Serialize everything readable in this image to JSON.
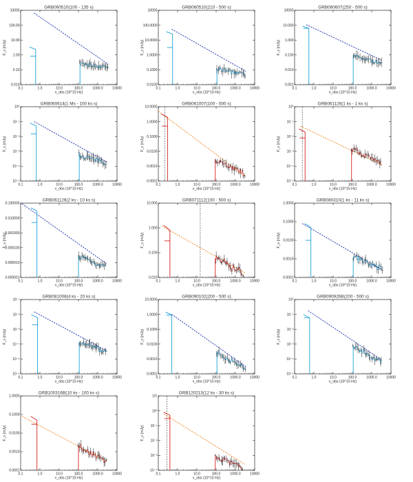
{
  "figure": {
    "xlabel": "ν_obs (10^15 Hz)",
    "ylabel": "F_ν (mJy)",
    "x_ticks": [
      "0.1",
      "1.0",
      "10.0",
      "100.0",
      "1000.0",
      "10000"
    ],
    "colors": {
      "blue_fit": "#1a2fb0",
      "orange_fit": "#f08a24",
      "cyan": "#1aa0d8",
      "red": "#d42020",
      "data": "#000000"
    }
  },
  "chart_data": [
    {
      "type": "line",
      "title": "GRB060510(100 - 135 s)",
      "fit_color": "blue",
      "y_ticks": [
        "0.010",
        "0.10",
        "1.00",
        "10.00",
        "100.00",
        "10000"
      ],
      "ylim_exp": [
        -2,
        4
      ],
      "fit": {
        "x": [
          0.5,
          3500
        ],
        "y": [
          6000,
          0.45
        ]
      },
      "opt_x": 0.6,
      "opt_y": [
        7.0,
        2.0
      ],
      "xr_range": [
        120,
        3400
      ],
      "xr_level": [
        0.25,
        0.5
      ],
      "xr_band": [
        120,
        180
      ],
      "vline": null
    },
    {
      "type": "line",
      "title": "GRB060510(210 - 500 s)",
      "fit_color": "blue",
      "y_ticks": [
        "0.0100",
        "0.1000",
        "1.0000",
        "10.0000",
        "100.0000",
        "10000"
      ],
      "ylim_exp": [
        -2,
        4
      ],
      "fit": {
        "x": [
          0.5,
          3500
        ],
        "y": [
          300,
          0.12
        ]
      },
      "opt_x": 0.55,
      "opt_y": [
        120,
        10
      ],
      "xr_range": [
        110,
        3200
      ],
      "xr_level": [
        0.06,
        0.2
      ],
      "xr_band": [
        110,
        160
      ],
      "vline": null
    },
    {
      "type": "line",
      "title": "GRB060607(250 - 500 s)",
      "fit_color": "blue",
      "y_ticks": [
        "0.001",
        "0.010",
        "0.100",
        "1.000",
        "10.000",
        "10000"
      ],
      "ylim_exp": [
        -3,
        4
      ],
      "fit": {
        "x": [
          0.4,
          3300
        ],
        "y": [
          450,
          0.2
        ]
      },
      "opt_x": 0.55,
      "opt_y": [
        200,
        200
      ],
      "xr_range": [
        110,
        3300
      ],
      "xr_level": [
        0.1,
        0.5
      ],
      "xr_band": [
        110,
        150
      ],
      "vline": null
    },
    {
      "type": "line",
      "title": "GRB060614(1 Ms - 100 ks s)",
      "fit_color": "blue",
      "y_ticks": [
        "10⁻⁵",
        "10⁻⁴",
        "10⁻³",
        "10⁻²",
        "10⁻¹",
        "10⁰"
      ],
      "ylim_exp": [
        -5,
        0
      ],
      "fit": {
        "x": [
          0.5,
          3300
        ],
        "y": [
          0.1,
          0.00018
        ]
      },
      "opt_x": 0.65,
      "opt_y": [
        0.05,
        0.015
      ],
      "xr_range": [
        110,
        2600
      ],
      "xr_level": [
        0.00015,
        0.0006
      ],
      "xr_band": [
        110,
        140
      ],
      "vline": null
    },
    {
      "type": "line",
      "title": "GRB061007(100 - 500 s)",
      "fit_color": "orange",
      "y_ticks": [
        "0.0001",
        "0.0010",
        "0.0100",
        "0.1000",
        "1.0000",
        "10.0000"
      ],
      "ylim_exp": [
        -4,
        1
      ],
      "fit": {
        "x": [
          0.1,
          3500
        ],
        "y": [
          5,
          0.0002
        ]
      },
      "opt_x": 0.3,
      "opt_y": [
        2.0,
        0.5
      ],
      "xr_range": [
        90,
        3000
      ],
      "xr_level": [
        0.0003,
        0.003
      ],
      "xr_band": [
        90,
        130
      ],
      "vline": 0.22
    },
    {
      "type": "line",
      "title": "GRB061126(1 ks - 1 ks s)",
      "fit_color": "orange",
      "y_ticks": [
        "10⁻⁵",
        "10⁻⁴",
        "10⁻³",
        "10⁻²",
        "10⁻¹",
        "10⁰"
      ],
      "ylim_exp": [
        -5,
        0
      ],
      "fit": {
        "x": [
          0.2,
          3500
        ],
        "y": [
          0.05,
          0.00012
        ]
      },
      "opt_x": 0.35,
      "opt_y": [
        0.02,
        0.008
      ],
      "xr_range": [
        90,
        3000
      ],
      "xr_level": [
        0.00015,
        0.0015
      ],
      "xr_band": [
        90,
        120
      ],
      "vline": 0.25
    },
    {
      "type": "line",
      "title": "GRB061126(2 ks - 10 ks s)",
      "fit_color": "blue",
      "y_ticks": [
        "0.000001",
        "0.000010",
        "0.000100",
        "0.001000",
        "0.010000",
        "0.100000"
      ],
      "ylim_exp": [
        -6,
        -1
      ],
      "fit": {
        "x": [
          0.12,
          3000
        ],
        "y": [
          0.09,
          8e-06
        ]
      },
      "opt_x": 0.7,
      "opt_y": [
        0.03,
        0.005
      ],
      "xr_range": [
        100,
        2500
      ],
      "xr_level": [
        5e-06,
        3e-05
      ],
      "xr_band": [
        100,
        130
      ],
      "vline": null
    },
    {
      "type": "line",
      "title": "GRB071112(100 - 500 s)",
      "fit_color": "orange",
      "y_ticks": [
        "0.010",
        "0.100",
        "1.000",
        "10.000"
      ],
      "ylim_exp": [
        -2,
        1
      ],
      "fit": {
        "x": [
          0.15,
          3200
        ],
        "y": [
          1.2,
          0.015
        ]
      },
      "opt_x": 0.4,
      "opt_y": [
        0.8,
        0.3
      ],
      "xr_range": [
        90,
        2500
      ],
      "xr_level": [
        0.015,
        0.06
      ],
      "xr_band": [
        90,
        120
      ],
      "vline": 15
    },
    {
      "type": "line",
      "title": "GRB080310(1 ks - 11 ks s)",
      "fit_color": "blue",
      "y_ticks": [
        "0.0001",
        "0.0010",
        "0.0100",
        "0.1000",
        "1.0000"
      ],
      "ylim_exp": [
        -4,
        0
      ],
      "fit": {
        "x": [
          0.25,
          3500
        ],
        "y": [
          0.08,
          0.00025
        ]
      },
      "opt_x": 0.7,
      "opt_y": [
        0.05,
        0.01
      ],
      "xr_range": [
        110,
        3400
      ],
      "xr_level": [
        0.0003,
        0.0012
      ],
      "xr_band": [
        110,
        140
      ],
      "vline": null
    },
    {
      "type": "line",
      "title": "GRB081008(4 ks - 20 ks s)",
      "fit_color": "blue",
      "y_ticks": [
        "10⁻⁶",
        "10⁻⁵",
        "10⁻⁴",
        "10⁻³",
        "10⁻²",
        "10⁻¹"
      ],
      "ylim_exp": [
        -6,
        -1
      ],
      "fit": {
        "x": [
          0.5,
          3000
        ],
        "y": [
          0.015,
          3.5e-05
        ]
      },
      "opt_x": 0.75,
      "opt_y": [
        0.006,
        0.002
      ],
      "xr_range": [
        110,
        2600
      ],
      "xr_level": [
        3e-05,
        0.00015
      ],
      "xr_band": [
        110,
        140
      ],
      "vline": null
    },
    {
      "type": "line",
      "title": "GRB090102(200 - 500 s)",
      "fit_color": "blue",
      "y_ticks": [
        "0.0001",
        "0.0010",
        "0.0100",
        "0.1000",
        "1.0000",
        "10.0000"
      ],
      "ylim_exp": [
        -4,
        1
      ],
      "fit": {
        "x": [
          0.5,
          3500
        ],
        "y": [
          1.0,
          0.0003
        ]
      },
      "opt_x": 0.5,
      "opt_y": [
        0.9,
        0.9
      ],
      "xr_range": [
        110,
        3300
      ],
      "xr_level": [
        0.0002,
        0.003
      ],
      "xr_band": [
        110,
        150
      ],
      "vline": null
    },
    {
      "type": "line",
      "title": "GRB090926B(200 - 500 s)",
      "fit_color": "blue",
      "y_ticks": [
        "10⁻⁵",
        "10⁻⁴",
        "10⁻³",
        "10⁻²",
        "10⁻¹",
        "10⁰"
      ],
      "ylim_exp": [
        -5,
        0
      ],
      "fit": {
        "x": [
          0.5,
          3200
        ],
        "y": [
          0.18,
          9e-05
        ]
      },
      "opt_x": 0.6,
      "opt_y": [
        0.06,
        0.06
      ],
      "xr_range": [
        110,
        3200
      ],
      "xr_level": [
        6e-05,
        0.0008
      ],
      "xr_band": [
        110,
        150
      ],
      "vline": null
    },
    {
      "type": "line",
      "title": "GRB100316B(10 ks - 100 ks s)",
      "fit_color": "orange",
      "y_ticks": [
        "0.0001",
        "0.0010",
        "0.0100",
        "0.1000",
        "1.0000"
      ],
      "ylim_exp": [
        -4,
        0
      ],
      "fit": {
        "x": [
          0.12,
          3000
        ],
        "y": [
          0.08,
          0.0003
        ]
      },
      "opt_x": 0.7,
      "opt_y": [
        0.05,
        0.03
      ],
      "xr_range": [
        100,
        2800
      ],
      "xr_level": [
        0.0003,
        0.002
      ],
      "xr_band": [
        100,
        130
      ],
      "vline": null
    },
    {
      "type": "line",
      "title": "GRB120213(12 ks - 30 ks s)",
      "fit_color": "orange",
      "y_ticks": [
        "10⁻⁴",
        "10⁻³",
        "10⁻²",
        "10⁻¹",
        "10⁰",
        "10¹"
      ],
      "ylim_exp": [
        -4,
        1
      ],
      "fit": {
        "x": [
          0.2,
          3200
        ],
        "y": [
          0.6,
          0.00025
        ]
      },
      "opt_x": 0.4,
      "opt_y": [
        0.5,
        0.3
      ],
      "xr_range": [
        90,
        2400
      ],
      "xr_level": [
        0.00015,
        0.0008
      ],
      "xr_band": [
        90,
        120
      ],
      "vline": 0.28
    }
  ]
}
